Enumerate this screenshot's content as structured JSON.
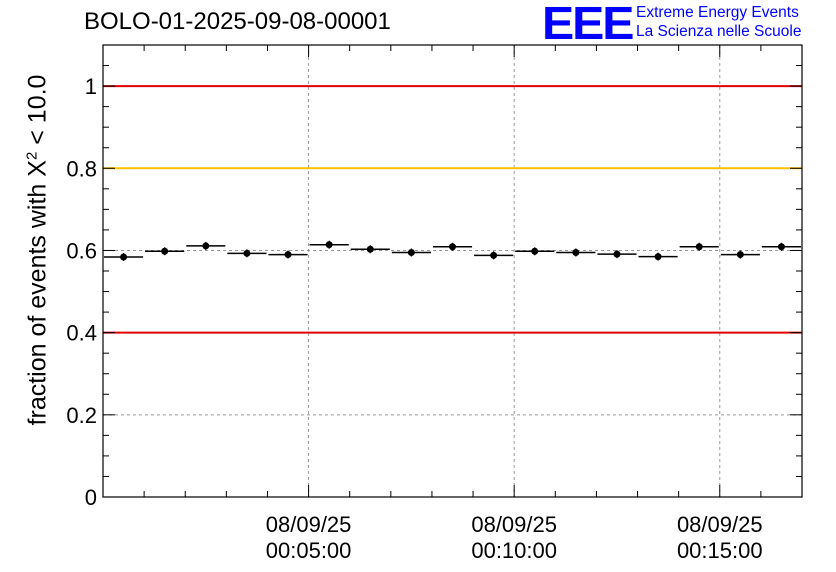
{
  "chart_data": {
    "type": "scatter",
    "title": "BOLO-01-2025-09-08-00001",
    "ylabel_prefix": "fraction of events with X",
    "ylabel_sup": "2",
    "ylabel_suffix": " < 10.0",
    "xlabel": "",
    "ylim": [
      0,
      1.1
    ],
    "xlim_minutes": [
      0,
      17
    ],
    "yticks": [
      {
        "value": 0,
        "label": "0"
      },
      {
        "value": 0.2,
        "label": "0.2"
      },
      {
        "value": 0.4,
        "label": "0.4"
      },
      {
        "value": 0.6,
        "label": "0.6"
      },
      {
        "value": 0.8,
        "label": "0.8"
      },
      {
        "value": 1.0,
        "label": "1"
      }
    ],
    "xticks": [
      {
        "minute": 5,
        "date": "08/09/25",
        "time": "00:05:00"
      },
      {
        "minute": 10,
        "date": "08/09/25",
        "time": "00:10:00"
      },
      {
        "minute": 15,
        "date": "08/09/25",
        "time": "00:15:00"
      }
    ],
    "reference_lines": [
      {
        "value": 1.0,
        "color": "#e00000"
      },
      {
        "value": 0.8,
        "color": "#ffc000"
      },
      {
        "value": 0.4,
        "color": "#e00000"
      }
    ],
    "bin_width_minutes": 1,
    "x": [
      0.5,
      1.5,
      2.5,
      3.5,
      4.5,
      5.5,
      6.5,
      7.5,
      8.5,
      9.5,
      10.5,
      11.5,
      12.5,
      13.5,
      14.5,
      15.5,
      16.5
    ],
    "values": [
      0.584,
      0.598,
      0.611,
      0.593,
      0.59,
      0.614,
      0.603,
      0.595,
      0.609,
      0.588,
      0.598,
      0.595,
      0.591,
      0.585,
      0.609,
      0.59,
      0.609
    ]
  },
  "logo": {
    "mark": "EEE",
    "line1": "Extreme Energy Events",
    "line2": "La Scienza nelle Scuole"
  },
  "colors": {
    "logo": "#0000ff",
    "grid": "#999999"
  }
}
